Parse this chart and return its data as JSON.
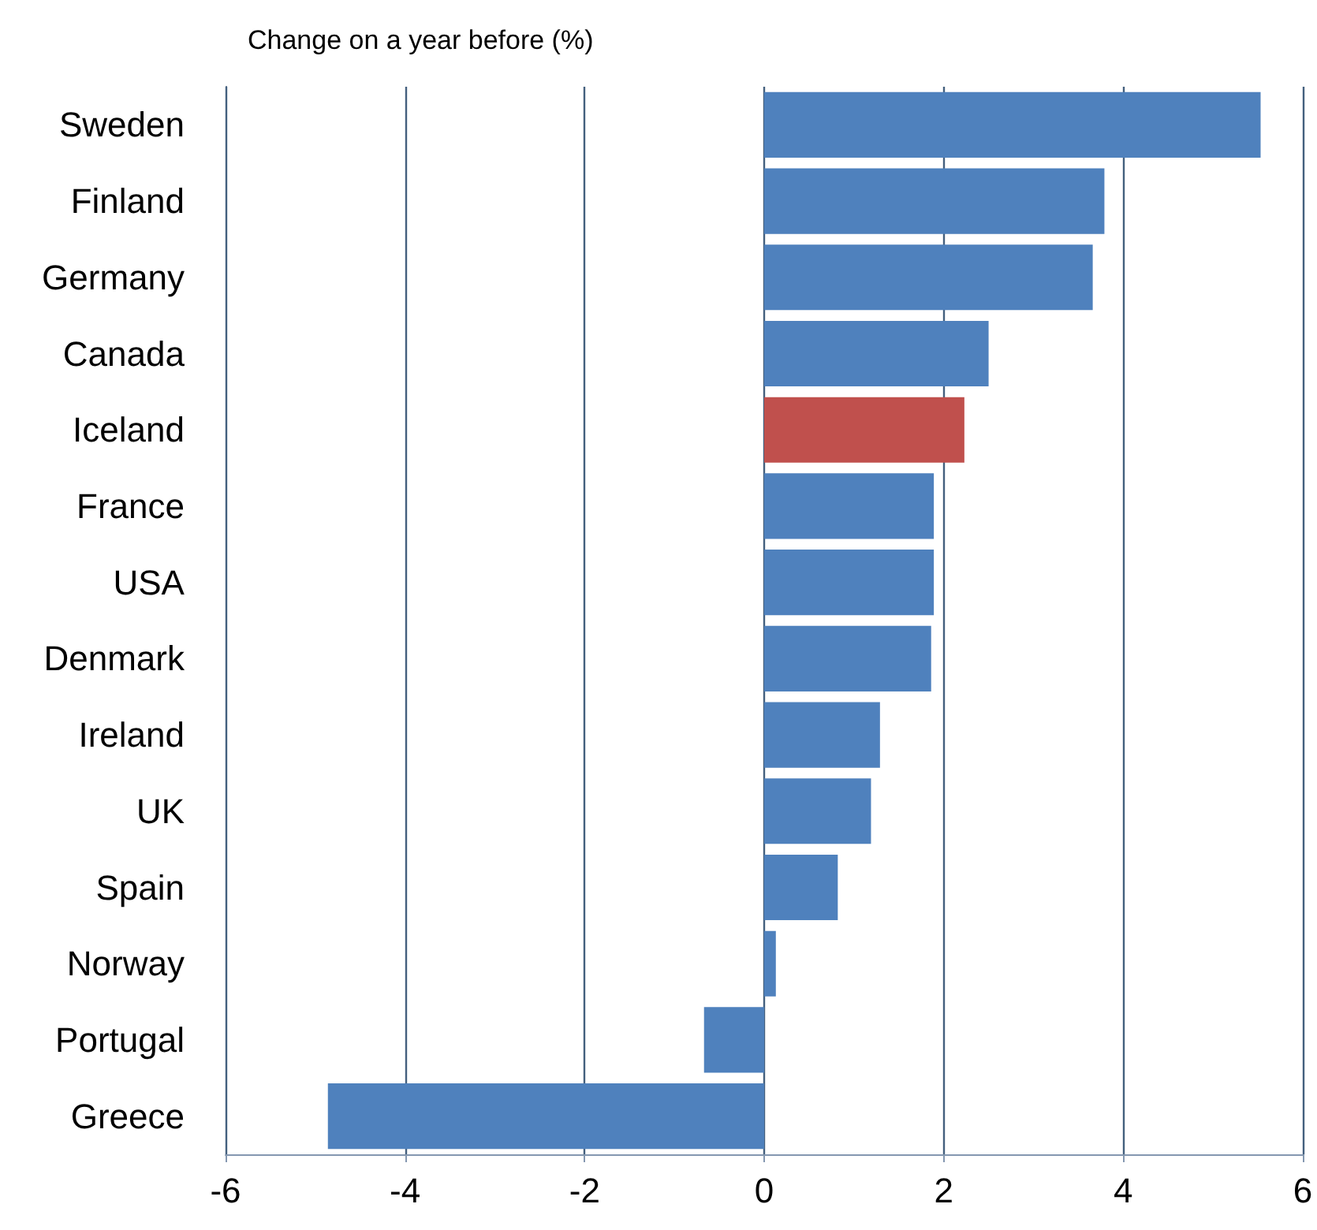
{
  "chart_data": {
    "type": "bar",
    "orientation": "horizontal",
    "title": "Change on a year before (%)",
    "categories": [
      "Sweden",
      "Finland",
      "Germany",
      "Canada",
      "Iceland",
      "France",
      "USA",
      "Denmark",
      "Ireland",
      "UK",
      "Spain",
      "Norway",
      "Portugal",
      "Greece"
    ],
    "values": [
      5.53,
      3.79,
      3.66,
      2.5,
      2.23,
      1.89,
      1.89,
      1.86,
      1.29,
      1.19,
      0.82,
      0.13,
      -0.67,
      -4.86
    ],
    "colors": [
      "#4f81bd",
      "#4f81bd",
      "#4f81bd",
      "#4f81bd",
      "#c0504d",
      "#4f81bd",
      "#4f81bd",
      "#4f81bd",
      "#4f81bd",
      "#4f81bd",
      "#4f81bd",
      "#4f81bd",
      "#4f81bd",
      "#4f81bd"
    ],
    "xlim": [
      -6,
      6
    ],
    "xticks": [
      -6,
      -4,
      -2,
      0,
      2,
      4,
      6
    ],
    "grid": "x"
  }
}
